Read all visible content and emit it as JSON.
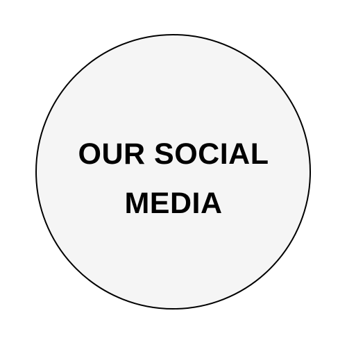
{
  "graphic": {
    "headline_line1": "OUR SOCIAL",
    "headline_line2": "MEDIA"
  },
  "colors": {
    "background": "#ffffff",
    "circle_fill": "#f5f5f5",
    "circle_stroke": "#000000",
    "text": "#000000"
  }
}
